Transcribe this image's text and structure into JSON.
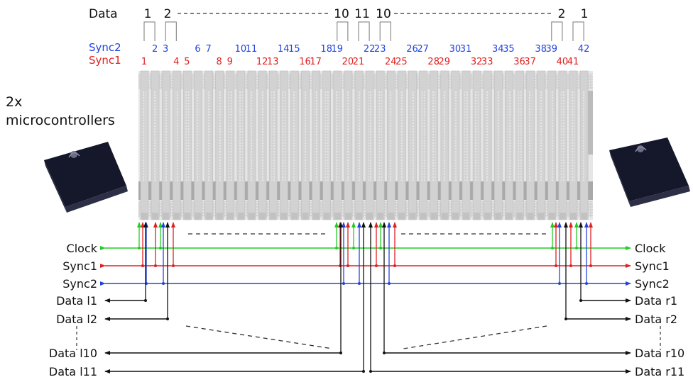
{
  "data_header": {
    "label": "Data",
    "indices": [
      "1",
      "2",
      "10",
      "11",
      "10",
      "2",
      "1"
    ]
  },
  "sync2_row": {
    "label": "Sync2",
    "numbers": [
      "2",
      "3",
      "6",
      "7",
      "10",
      "11",
      "14",
      "15",
      "18",
      "19",
      "22",
      "23",
      "26",
      "27",
      "30",
      "31",
      "34",
      "35",
      "38",
      "39",
      "42"
    ]
  },
  "sync1_row": {
    "label": "Sync1",
    "numbers": [
      "1",
      "4",
      "5",
      "8",
      "9",
      "12",
      "13",
      "16",
      "17",
      "20",
      "21",
      "24",
      "25",
      "28",
      "29",
      "32",
      "33",
      "36",
      "37",
      "40",
      "41"
    ]
  },
  "device_caption": {
    "line1": "2x",
    "line2": "microcontrollers"
  },
  "left_signals": [
    "Clock",
    "Sync1",
    "Sync2",
    "Data l1",
    "Data l2",
    "Data l10",
    "Data l11"
  ],
  "right_signals": [
    "Clock",
    "Sync1",
    "Sync2",
    "Data r1",
    "Data r2",
    "Data r10",
    "Data r11"
  ],
  "colors": {
    "clock": "#22cc22",
    "sync1": "#e02020",
    "sync2": "#2244dd",
    "data": "#111111",
    "board": "#c8c8c8",
    "chip": "#15172a"
  }
}
